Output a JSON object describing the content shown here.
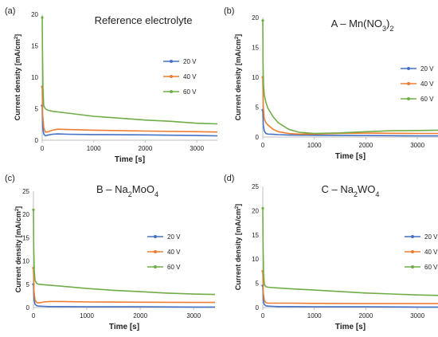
{
  "colors": {
    "series_20v": "#4472C4",
    "series_40v": "#ED7D31",
    "series_60v": "#70AD47",
    "axis": "#bfbfbf",
    "text": "#222222"
  },
  "chart_data": [
    {
      "type": "line",
      "panel_label": "(a)",
      "title": "Reference electrolyte",
      "title_main": "Reference electrolyte",
      "title_sub": "",
      "title_tail": "",
      "xlabel": "Time [s]",
      "ylabel": "Current density [mA/cm²]",
      "ylabel_main": "Current density [mA/cm",
      "ylabel_sup": "2",
      "ylabel_tail": "]",
      "xlim": [
        0,
        3400
      ],
      "ylim": [
        0,
        20
      ],
      "xticks": [
        "0",
        "1000",
        "2000",
        "3000"
      ],
      "xtick_values": [
        0,
        1000,
        2000,
        3000
      ],
      "yticks": [
        "0",
        "5",
        "10",
        "15",
        "20"
      ],
      "ytick_values": [
        0,
        5,
        10,
        15,
        20
      ],
      "legend_position": "right",
      "series": [
        {
          "name": "20 V",
          "x": [
            0,
            10,
            30,
            60,
            100,
            200,
            300,
            500,
            1000,
            2000,
            2500,
            3000,
            3400
          ],
          "y": [
            5.5,
            2.0,
            1.0,
            0.7,
            0.8,
            0.95,
            1.0,
            0.95,
            0.9,
            0.85,
            0.8,
            0.75,
            0.7
          ]
        },
        {
          "name": "40 V",
          "x": [
            0,
            10,
            30,
            60,
            100,
            200,
            300,
            500,
            1000,
            2000,
            3000,
            3400
          ],
          "y": [
            8.5,
            4.0,
            2.0,
            1.3,
            1.3,
            1.6,
            1.75,
            1.7,
            1.6,
            1.45,
            1.35,
            1.3
          ]
        },
        {
          "name": "60 V",
          "x": [
            0,
            5,
            15,
            30,
            60,
            100,
            200,
            500,
            1000,
            1500,
            2000,
            2500,
            3000,
            3400
          ],
          "y": [
            19.5,
            15.0,
            8.0,
            5.5,
            5.0,
            4.8,
            4.6,
            4.3,
            3.8,
            3.5,
            3.2,
            3.0,
            2.7,
            2.6
          ]
        }
      ]
    },
    {
      "type": "line",
      "panel_label": "(b)",
      "title": "A – Mn(NO3)2",
      "title_main": "A – Mn(NO",
      "title_sub": "3",
      "title_mid": ")",
      "title_sub2": "2",
      "title_tail": "",
      "xlabel": "Time [s]",
      "ylabel": "Current density [mA/cm²]",
      "ylabel_main": "Current density [mA/cm",
      "ylabel_sup": "2",
      "ylabel_tail": "]",
      "xlim": [
        0,
        3400
      ],
      "ylim": [
        0,
        20
      ],
      "xticks": [
        "0",
        "1000",
        "2000",
        "3000"
      ],
      "xtick_values": [
        0,
        1000,
        2000,
        3000
      ],
      "yticks": [
        "0",
        "5",
        "10",
        "15",
        "20"
      ],
      "ytick_values": [
        0,
        5,
        10,
        15,
        20
      ],
      "legend_position": "right",
      "series": [
        {
          "name": "20 V",
          "x": [
            0,
            10,
            30,
            60,
            100,
            200,
            300,
            500,
            1000,
            2000,
            3000,
            3400
          ],
          "y": [
            4.5,
            2.0,
            1.0,
            0.6,
            0.5,
            0.45,
            0.4,
            0.35,
            0.3,
            0.25,
            0.2,
            0.2
          ]
        },
        {
          "name": "40 V",
          "x": [
            0,
            10,
            30,
            60,
            100,
            200,
            300,
            500,
            700,
            1000,
            1500,
            2000,
            3000,
            3400
          ],
          "y": [
            10.0,
            5.0,
            3.0,
            2.4,
            2.0,
            1.3,
            0.9,
            0.6,
            0.5,
            0.5,
            0.6,
            0.65,
            0.6,
            0.6
          ]
        },
        {
          "name": "60 V",
          "x": [
            0,
            5,
            15,
            30,
            60,
            100,
            200,
            300,
            500,
            700,
            1000,
            1500,
            2000,
            2500,
            3000,
            3400
          ],
          "y": [
            19.5,
            12.0,
            8.5,
            7.0,
            5.8,
            4.8,
            3.4,
            2.4,
            1.3,
            0.8,
            0.6,
            0.7,
            0.9,
            1.05,
            1.1,
            1.15
          ]
        }
      ]
    },
    {
      "type": "line",
      "panel_label": "(c)",
      "title": "B – Na2MoO4",
      "title_main": "B – Na",
      "title_sub": "2",
      "title_mid": "MoO",
      "title_sub2": "4",
      "title_tail": "",
      "xlabel": "Time [s]",
      "ylabel": "Current density [mA/cm²]",
      "ylabel_main": "Current density [mA/cm",
      "ylabel_sup": "2",
      "ylabel_tail": "]",
      "xlim": [
        0,
        3400
      ],
      "ylim": [
        0,
        25
      ],
      "xticks": [
        "0",
        "1000",
        "2000",
        "3000"
      ],
      "xtick_values": [
        0,
        1000,
        2000,
        3000
      ],
      "yticks": [
        "0",
        "5",
        "10",
        "15",
        "20",
        "25"
      ],
      "ytick_values": [
        0,
        5,
        10,
        15,
        20,
        25
      ],
      "legend_position": "right",
      "series": [
        {
          "name": "20 V",
          "x": [
            0,
            10,
            30,
            60,
            100,
            200,
            300,
            500,
            1000,
            2000,
            3000,
            3400
          ],
          "y": [
            5.0,
            1.8,
            0.7,
            0.4,
            0.3,
            0.25,
            0.2,
            0.2,
            0.15,
            0.15,
            0.1,
            0.1
          ]
        },
        {
          "name": "40 V",
          "x": [
            0,
            10,
            30,
            60,
            100,
            200,
            300,
            500,
            1000,
            2000,
            3000,
            3400
          ],
          "y": [
            8.5,
            3.5,
            1.6,
            1.1,
            1.0,
            1.2,
            1.3,
            1.3,
            1.2,
            1.15,
            1.1,
            1.1
          ]
        },
        {
          "name": "60 V",
          "x": [
            0,
            5,
            15,
            30,
            60,
            100,
            200,
            500,
            1000,
            1500,
            2000,
            2500,
            3000,
            3400
          ],
          "y": [
            21.0,
            13.5,
            8.0,
            5.8,
            5.2,
            5.0,
            4.9,
            4.6,
            4.1,
            3.7,
            3.4,
            3.1,
            2.9,
            2.8
          ]
        }
      ]
    },
    {
      "type": "line",
      "panel_label": "(d)",
      "title": "C – Na2WO4",
      "title_main": "C – Na",
      "title_sub": "2",
      "title_mid": "WO",
      "title_sub2": "4",
      "title_tail": "",
      "xlabel": "Time [s]",
      "ylabel": "Current density [mA/cm²]",
      "ylabel_main": "Current density [mA/cm",
      "ylabel_sup": "2",
      "ylabel_tail": "]",
      "xlim": [
        0,
        3400
      ],
      "ylim": [
        0,
        25
      ],
      "xticks": [
        "0",
        "1000",
        "2000",
        "3000"
      ],
      "xtick_values": [
        0,
        1000,
        2000,
        3000
      ],
      "yticks": [
        "0",
        "5",
        "10",
        "15",
        "20",
        "25"
      ],
      "ytick_values": [
        0,
        5,
        10,
        15,
        20,
        25
      ],
      "legend_position": "right",
      "series": [
        {
          "name": "20 V",
          "x": [
            0,
            10,
            30,
            60,
            100,
            200,
            300,
            500,
            1000,
            2000,
            3000,
            3400
          ],
          "y": [
            4.5,
            1.5,
            0.6,
            0.35,
            0.3,
            0.25,
            0.2,
            0.2,
            0.15,
            0.15,
            0.1,
            0.1
          ]
        },
        {
          "name": "40 V",
          "x": [
            0,
            10,
            30,
            60,
            100,
            200,
            300,
            500,
            1000,
            2000,
            3000,
            3400
          ],
          "y": [
            7.5,
            3.0,
            1.5,
            1.0,
            0.9,
            0.9,
            0.9,
            0.9,
            0.85,
            0.8,
            0.8,
            0.8
          ]
        },
        {
          "name": "60 V",
          "x": [
            0,
            5,
            15,
            30,
            60,
            100,
            200,
            500,
            1000,
            1500,
            2000,
            2500,
            3000,
            3400
          ],
          "y": [
            20.5,
            13.0,
            7.0,
            4.8,
            4.3,
            4.2,
            4.1,
            3.9,
            3.6,
            3.3,
            3.0,
            2.8,
            2.6,
            2.5
          ]
        }
      ]
    }
  ]
}
